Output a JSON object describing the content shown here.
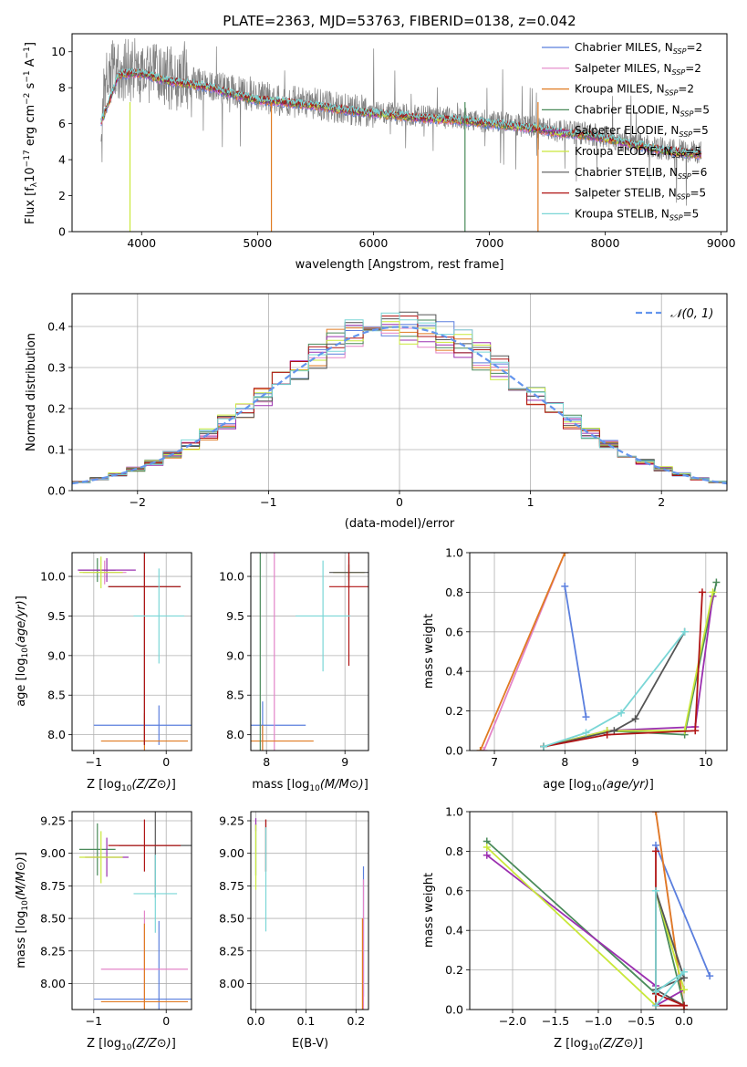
{
  "colors": [
    "#5b7fde",
    "#e384c8",
    "#e07b22",
    "#4a8a5a",
    "#9b30b0",
    "#c9e83a",
    "#555555",
    "#b01515",
    "#7ad6d6"
  ],
  "chart_data": [
    {
      "type": "line",
      "title": "PLATE=2363, MJD=53763, FIBERID=0138, z=0.042",
      "xlabel": "wavelength [Angstrom, rest frame]",
      "ylabel": "Flux [f_λ 10^-17 erg cm^-2 s^-1 A^-1]",
      "xlim": [
        3400,
        9050
      ],
      "ylim": [
        0,
        11
      ],
      "xticks": [
        4000,
        5000,
        6000,
        7000,
        8000,
        9000
      ],
      "yticks": [
        0,
        2,
        4,
        6,
        8,
        10
      ],
      "legend_position": "top-right",
      "data_color": "#808080",
      "data_curve": {
        "x": [
          3650,
          3700,
          3800,
          3900,
          4000,
          4100,
          4200,
          4400,
          4600,
          4800,
          5000,
          5200,
          5500,
          5800,
          6100,
          6400,
          6700,
          7000,
          7300,
          7600,
          7900,
          8200,
          8500,
          8800
        ],
        "y": [
          6.2,
          8.6,
          8.9,
          9.0,
          8.9,
          8.7,
          8.6,
          8.3,
          8.1,
          7.8,
          7.5,
          7.3,
          7.1,
          6.8,
          6.6,
          6.4,
          6.3,
          6.1,
          5.9,
          5.6,
          5.4,
          5.0,
          4.6,
          4.4
        ]
      },
      "model_curve": {
        "x": [
          3650,
          3700,
          3800,
          3900,
          4000,
          4100,
          4200,
          4400,
          4600,
          4800,
          5000,
          5200,
          5500,
          5800,
          6100,
          6400,
          6700,
          7000,
          7300,
          7600,
          7900,
          8200,
          8500,
          8800
        ],
        "y": [
          6.1,
          6.9,
          8.7,
          8.8,
          8.8,
          8.6,
          8.4,
          8.2,
          8.0,
          7.6,
          7.3,
          7.2,
          7.0,
          6.7,
          6.5,
          6.3,
          6.2,
          6.0,
          5.8,
          5.5,
          5.3,
          4.9,
          4.5,
          4.3
        ]
      },
      "series": [
        {
          "name": "Chabrier MILES, N_SSP=2",
          "label_main": "Chabrier MILES, N",
          "label_sub": "SSP",
          "label_tail": "=2"
        },
        {
          "name": "Salpeter MILES, N_SSP=2",
          "label_main": "Salpeter MILES, N",
          "label_sub": "SSP",
          "label_tail": "=2"
        },
        {
          "name": "Kroupa MILES, N_SSP=2",
          "label_main": "Kroupa MILES, N",
          "label_sub": "SSP",
          "label_tail": "=2"
        },
        {
          "name": "Chabrier ELODIE, N_SSP=5",
          "label_main": "Chabrier ELODIE, N",
          "label_sub": "SSP",
          "label_tail": "=5"
        },
        {
          "name": "Salpeter ELODIE, N_SSP=5",
          "label_main": "Salpeter ELODIE, N",
          "label_sub": "SSP",
          "label_tail": "=5"
        },
        {
          "name": "Kroupa ELODIE, N_SSP=5",
          "label_main": "Kroupa ELODIE, N",
          "label_sub": "SSP",
          "label_tail": "=5"
        },
        {
          "name": "Chabrier STELIB, N_SSP=6",
          "label_main": "Chabrier STELIB, N",
          "label_sub": "SSP",
          "label_tail": "=6"
        },
        {
          "name": "Salpeter STELIB, N_SSP=5",
          "label_main": "Salpeter STELIB, N",
          "label_sub": "SSP",
          "label_tail": "=5"
        },
        {
          "name": "Kroupa STELIB, N_SSP=5",
          "label_main": "Kroupa STELIB, N",
          "label_sub": "SSP",
          "label_tail": "=5"
        }
      ]
    },
    {
      "type": "bar",
      "xlabel": "(data-model)/error",
      "ylabel": "Normed distribution",
      "xlim": [
        -2.5,
        2.5
      ],
      "ylim": [
        0,
        0.48
      ],
      "xticks": [
        -2,
        -1,
        0,
        1,
        2
      ],
      "yticks": [
        0.0,
        0.1,
        0.2,
        0.3,
        0.4
      ],
      "grid": true,
      "legend_position": "top-right",
      "reference_curve": {
        "name": "N(0,1)",
        "label": "𝒩(0, 1)",
        "color": "#6495ED"
      }
    },
    {
      "type": "scatter",
      "xlabel": "Z [log10(Z/Z⊙)]",
      "ylabel": "age [log10(age/yr)]",
      "xlim": [
        -1.3,
        0.35
      ],
      "ylim": [
        7.8,
        10.3
      ],
      "xticks": [
        -1,
        0
      ],
      "yticks": [
        8.0,
        8.5,
        9.0,
        9.5,
        10.0
      ],
      "grid": true,
      "points": [
        {
          "series": 0,
          "x": -0.1,
          "y": 8.12,
          "xerr": 0.9,
          "yerr": 0.25
        },
        {
          "series": 1,
          "x": -0.85,
          "y": 10.05,
          "xerr": 0.3,
          "yerr": 0.15
        },
        {
          "series": 2,
          "x": -0.3,
          "y": 7.92,
          "xerr": 0.6,
          "yerr": 0.35
        },
        {
          "series": 3,
          "x": -0.95,
          "y": 10.08,
          "xerr": 0.25,
          "yerr": 0.15
        },
        {
          "series": 4,
          "x": -0.82,
          "y": 10.08,
          "xerr": 0.4,
          "yerr": 0.15
        },
        {
          "series": 5,
          "x": -0.9,
          "y": 10.05,
          "xerr": 0.3,
          "yerr": 0.2
        },
        {
          "series": 6,
          "x": -0.3,
          "y": 9.87,
          "xerr": 0.5,
          "yerr": 2.0
        },
        {
          "series": 7,
          "x": -0.3,
          "y": 9.87,
          "xerr": 0.5,
          "yerr": 2.0
        },
        {
          "series": 8,
          "x": -0.1,
          "y": 9.5,
          "xerr": 0.35,
          "yerr": 0.6
        }
      ]
    },
    {
      "type": "scatter",
      "xlabel": "mass [log10(M/M⊙)]",
      "ylabel": "",
      "xlim": [
        7.8,
        9.3
      ],
      "ylim": [
        7.8,
        10.3
      ],
      "xticks": [
        8,
        9
      ],
      "yticks": [
        8.0,
        8.5,
        9.0,
        9.5,
        10.0
      ],
      "grid": true,
      "points": [
        {
          "series": 0,
          "x": 7.95,
          "y": 8.12,
          "xerr": 0.55,
          "yerr": 0.3
        },
        {
          "series": 1,
          "x": 8.1,
          "y": 10.05,
          "xerr": 0.0,
          "yerr": 2.5
        },
        {
          "series": 2,
          "x": 7.95,
          "y": 7.92,
          "xerr": 0.65,
          "yerr": 0.2
        },
        {
          "series": 3,
          "x": 7.92,
          "y": 10.05,
          "xerr": 0.0,
          "yerr": 2.3
        },
        {
          "series": 4,
          "x": 9.05,
          "y": 10.05,
          "xerr": 0.2,
          "yerr": 0.1
        },
        {
          "series": 5,
          "x": 9.05,
          "y": 10.05,
          "xerr": 0.2,
          "yerr": 0.1
        },
        {
          "series": 6,
          "x": 9.05,
          "y": 10.05,
          "xerr": 0.25,
          "yerr": 0.2
        },
        {
          "series": 7,
          "x": 9.05,
          "y": 9.87,
          "xerr": 0.25,
          "yerr": 1.0
        },
        {
          "series": 8,
          "x": 8.72,
          "y": 9.5,
          "xerr": 0.35,
          "yerr": 0.7
        }
      ]
    },
    {
      "type": "line",
      "xlabel": "age [log10(age/yr)]",
      "ylabel": "mass weight",
      "xlim": [
        6.65,
        10.3
      ],
      "ylim": [
        0,
        1.0
      ],
      "xticks": [
        7,
        8,
        9,
        10
      ],
      "yticks": [
        0.0,
        0.2,
        0.4,
        0.6,
        0.8,
        1.0
      ],
      "grid": true,
      "series_points": [
        {
          "series": 0,
          "x": [
            8.0,
            8.3
          ],
          "y": [
            0.83,
            0.17
          ]
        },
        {
          "series": 1,
          "x": [
            6.85,
            8.0
          ],
          "y": [
            0.0,
            1.0
          ]
        },
        {
          "series": 2,
          "x": [
            6.8,
            8.0
          ],
          "y": [
            0.0,
            1.0
          ]
        },
        {
          "series": 3,
          "x": [
            7.7,
            8.6,
            9.7,
            10.15
          ],
          "y": [
            0.02,
            0.1,
            0.08,
            0.85
          ]
        },
        {
          "series": 4,
          "x": [
            7.7,
            8.6,
            9.85,
            10.1
          ],
          "y": [
            0.02,
            0.1,
            0.12,
            0.78
          ]
        },
        {
          "series": 5,
          "x": [
            7.7,
            8.6,
            9.7,
            10.1
          ],
          "y": [
            0.02,
            0.1,
            0.1,
            0.8
          ]
        },
        {
          "series": 6,
          "x": [
            7.7,
            8.7,
            9.0,
            9.7
          ],
          "y": [
            0.02,
            0.1,
            0.16,
            0.6
          ]
        },
        {
          "series": 7,
          "x": [
            7.7,
            8.6,
            9.85,
            9.95
          ],
          "y": [
            0.02,
            0.08,
            0.1,
            0.8
          ]
        },
        {
          "series": 8,
          "x": [
            7.7,
            8.3,
            8.8,
            9.7
          ],
          "y": [
            0.02,
            0.09,
            0.19,
            0.6
          ]
        }
      ]
    },
    {
      "type": "scatter",
      "xlabel": "Z [log10(Z/Z⊙)]",
      "ylabel": "mass [log10(M/M⊙)]",
      "xlim": [
        -1.3,
        0.35
      ],
      "ylim": [
        7.8,
        9.32
      ],
      "xticks": [
        -1,
        0
      ],
      "yticks": [
        8.0,
        8.25,
        8.5,
        8.75,
        9.0,
        9.25
      ],
      "grid": true,
      "points": [
        {
          "series": 0,
          "x": -0.1,
          "y": 7.88,
          "xerr": 0.9,
          "yerr": 0.6
        },
        {
          "series": 1,
          "x": -0.3,
          "y": 8.11,
          "xerr": 0.6,
          "yerr": 0.45
        },
        {
          "series": 2,
          "x": -0.3,
          "y": 7.86,
          "xerr": 0.6,
          "yerr": 0.6
        },
        {
          "series": 3,
          "x": -0.95,
          "y": 9.03,
          "xerr": 0.25,
          "yerr": 0.2
        },
        {
          "series": 4,
          "x": -0.82,
          "y": 8.97,
          "xerr": 0.3,
          "yerr": 0.15
        },
        {
          "series": 5,
          "x": -0.9,
          "y": 8.97,
          "xerr": 0.3,
          "yerr": 0.2
        },
        {
          "series": 6,
          "x": -0.15,
          "y": 9.06,
          "xerr": 0.5,
          "yerr": 0.4
        },
        {
          "series": 7,
          "x": -0.3,
          "y": 9.06,
          "xerr": 0.5,
          "yerr": 0.2
        },
        {
          "series": 8,
          "x": -0.15,
          "y": 8.69,
          "xerr": 0.3,
          "yerr": 0.3
        }
      ]
    },
    {
      "type": "scatter",
      "xlabel": "E(B-V)",
      "ylabel": "",
      "xlim": [
        -0.01,
        0.225
      ],
      "ylim": [
        7.8,
        9.32
      ],
      "xticks": [
        0.0,
        0.1,
        0.2
      ],
      "yticks": [
        8.0,
        8.25,
        8.5,
        8.75,
        9.0,
        9.25
      ],
      "grid": true,
      "points": [
        {
          "series": 0,
          "x": 0.215,
          "y": 8.4,
          "xerr": 0.0,
          "yerr": 0.5
        },
        {
          "series": 1,
          "x": 0.215,
          "y": 8.3,
          "xerr": 0.0,
          "yerr": 0.5
        },
        {
          "series": 2,
          "x": 0.213,
          "y": 8.1,
          "xerr": 0.0,
          "yerr": 0.4
        },
        {
          "series": 3,
          "x": 0.0,
          "y": 9.03,
          "xerr": 0.0,
          "yerr": 0.2
        },
        {
          "series": 4,
          "x": 0.0,
          "y": 9.22,
          "xerr": 0.0,
          "yerr": 0.05
        },
        {
          "series": 5,
          "x": 0.0,
          "y": 8.97,
          "xerr": 0.0,
          "yerr": 0.25
        },
        {
          "series": 6,
          "x": 0.02,
          "y": 9.06,
          "xerr": 0.0,
          "yerr": 0.2
        },
        {
          "series": 7,
          "x": 0.02,
          "y": 9.06,
          "xerr": 0.0,
          "yerr": 0.2
        },
        {
          "series": 8,
          "x": 0.02,
          "y": 8.8,
          "xerr": 0.0,
          "yerr": 0.4
        }
      ]
    },
    {
      "type": "line",
      "xlabel": "Z [log10(Z/Z⊙)]",
      "ylabel": "mass weight",
      "xlim": [
        -2.5,
        0.5
      ],
      "ylim": [
        0,
        1.0
      ],
      "xticks": [
        -2.0,
        -1.5,
        -1.0,
        -0.5,
        0.0
      ],
      "yticks": [
        0.0,
        0.2,
        0.4,
        0.6,
        0.8,
        1.0
      ],
      "grid": true,
      "series_points": [
        {
          "series": 0,
          "x": [
            -0.33,
            0.3
          ],
          "y": [
            0.83,
            0.17
          ]
        },
        {
          "series": 1,
          "x": [
            -0.33,
            0.0
          ],
          "y": [
            1.0,
            0.0
          ]
        },
        {
          "series": 2,
          "x": [
            -0.33,
            0.0
          ],
          "y": [
            1.0,
            0.0
          ]
        },
        {
          "series": 3,
          "x": [
            -2.3,
            -0.33,
            -0.33,
            0.0
          ],
          "y": [
            0.85,
            0.08,
            0.6,
            0.02
          ]
        },
        {
          "series": 4,
          "x": [
            -2.3,
            -0.33,
            -0.33,
            0.0
          ],
          "y": [
            0.78,
            0.12,
            0.02,
            0.1
          ]
        },
        {
          "series": 5,
          "x": [
            -2.3,
            -0.33,
            -0.33,
            0.0
          ],
          "y": [
            0.82,
            0.02,
            0.6,
            0.1
          ]
        },
        {
          "series": 6,
          "x": [
            -0.33,
            0.0,
            -0.33,
            0.0
          ],
          "y": [
            0.6,
            0.16,
            0.1,
            0.02
          ]
        },
        {
          "series": 7,
          "x": [
            -0.33,
            -0.33,
            0.0,
            -0.33
          ],
          "y": [
            0.8,
            0.02,
            0.02,
            0.08
          ]
        },
        {
          "series": 8,
          "x": [
            -0.33,
            -0.33,
            0.0,
            -0.33
          ],
          "y": [
            0.6,
            0.09,
            0.19,
            0.02
          ]
        }
      ]
    }
  ]
}
